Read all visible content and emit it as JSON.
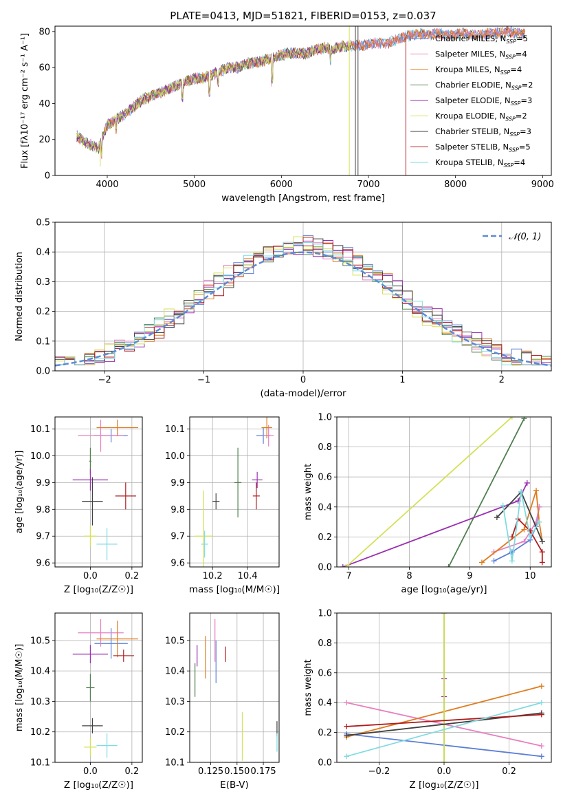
{
  "colors": {
    "Chabrier MILES": "#5b7fd6",
    "Salpeter MILES": "#e87fbf",
    "Kroupa MILES": "#e07b1e",
    "Chabrier ELODIE": "#4f7f4f",
    "Salpeter ELODIE": "#9a2fb0",
    "Kroupa ELODIE": "#d4e157",
    "Chabrier STELIB": "#404040",
    "Salpeter STELIB": "#b01c1c",
    "Kroupa STELIB": "#7fdbe0"
  },
  "chart_data": [
    {
      "type": "line",
      "id": "spectrum",
      "title": "PLATE=0413, MJD=51821, FIBERID=0153, z=0.037",
      "xlabel": "wavelength [Angstrom, rest frame]",
      "ylabel": "Flux [fλ10⁻¹⁷ erg cm⁻² s⁻¹ A⁻¹]",
      "xlim": [
        3400,
        9100
      ],
      "ylim": [
        0,
        83
      ],
      "xticks": [
        "4000",
        "5000",
        "6000",
        "7000",
        "8000",
        "9000"
      ],
      "yticks": [
        "0",
        "20",
        "40",
        "60",
        "80"
      ],
      "grid": false,
      "legend_position": "top-right",
      "legend": [
        {
          "model": "Chabrier MILES",
          "label": "Chabrier MILES, N",
          "sub": "SSP",
          "suffix": "=5"
        },
        {
          "model": "Salpeter MILES",
          "label": "Salpeter MILES, N",
          "sub": "SSP",
          "suffix": "=4"
        },
        {
          "model": "Kroupa MILES",
          "label": "Kroupa MILES, N",
          "sub": "SSP",
          "suffix": "=4"
        },
        {
          "model": "Chabrier ELODIE",
          "label": "Chabrier ELODIE, N",
          "sub": "SSP",
          "suffix": "=2"
        },
        {
          "model": "Salpeter ELODIE",
          "label": "Salpeter ELODIE, N",
          "sub": "SSP",
          "suffix": "=3"
        },
        {
          "model": "Kroupa ELODIE",
          "label": "Kroupa ELODIE, N",
          "sub": "SSP",
          "suffix": "=2"
        },
        {
          "model": "Chabrier STELIB",
          "label": "Chabrier STELIB, N",
          "sub": "SSP",
          "suffix": "=3"
        },
        {
          "model": "Salpeter STELIB",
          "label": "Salpeter STELIB, N",
          "sub": "SSP",
          "suffix": "=5"
        },
        {
          "model": "Kroupa STELIB",
          "label": "Kroupa STELIB, N",
          "sub": "SSP",
          "suffix": "=4"
        }
      ],
      "continuum": {
        "x": [
          3650,
          3700,
          3800,
          3900,
          3950,
          4000,
          4100,
          4200,
          4300,
          4400,
          4500,
          4600,
          4700,
          4800,
          4900,
          5000,
          5100,
          5200,
          5300,
          5400,
          5500,
          5600,
          5700,
          5800,
          5900,
          6000,
          6100,
          6200,
          6300,
          6400,
          6500,
          6600,
          6700,
          6800,
          6900,
          7000,
          7100,
          7200,
          7300,
          7400,
          7500,
          7600,
          7700,
          7800,
          7900,
          8000,
          8100,
          8200,
          8300,
          8400,
          8500,
          8600,
          8700,
          8800
        ],
        "y": [
          22,
          20,
          17,
          15,
          22,
          28,
          31,
          34,
          38,
          42,
          44,
          46,
          48,
          50,
          52,
          54,
          54,
          56,
          58,
          60,
          60,
          62,
          63,
          64,
          65,
          67,
          68,
          68,
          68,
          70,
          71,
          70,
          72,
          72,
          72,
          73,
          74,
          73,
          75,
          77,
          78,
          79,
          78,
          79,
          78,
          78,
          79,
          78,
          78,
          79,
          79,
          80,
          79,
          79
        ]
      },
      "absorption_lines": [
        {
          "x": 3935,
          "depth": 8
        },
        {
          "x": 4102,
          "depth": 6
        },
        {
          "x": 4861,
          "depth": 8
        },
        {
          "x": 5175,
          "depth": 9
        },
        {
          "x": 5270,
          "depth": 5
        },
        {
          "x": 5893,
          "depth": 12
        },
        {
          "x": 6563,
          "depth": 6
        }
      ],
      "dropouts": [
        {
          "model": "Kroupa ELODIE",
          "x": 3920,
          "to": 5
        },
        {
          "model": "Kroupa ELODIE",
          "x": 6780,
          "to": 0
        },
        {
          "model": "Chabrier STELIB",
          "x": 6850,
          "to": 0
        },
        {
          "model": "Chabrier STELIB",
          "x": 6880,
          "to": 0
        },
        {
          "model": "Salpeter STELIB",
          "x": 7430,
          "to": 0
        }
      ]
    },
    {
      "type": "histogram",
      "id": "residuals",
      "xlabel": "(data-model)/error",
      "ylabel": "Normed distribution",
      "xlim": [
        -2.5,
        2.5
      ],
      "ylim": [
        0,
        0.5
      ],
      "xticks": [
        "−2",
        "−1",
        "0",
        "1",
        "2"
      ],
      "yticks": [
        "0.0",
        "0.1",
        "0.2",
        "0.3",
        "0.4",
        "0.5"
      ],
      "grid": true,
      "legend_position": "top-right",
      "legend": [
        "𝒩(0, 1)"
      ],
      "bin_width": 0.1,
      "reference_curve": "gaussian",
      "offsets": [
        0.012,
        -0.018,
        0.02,
        -0.01,
        0.028,
        -0.026,
        0.006,
        0.016,
        -0.022
      ]
    },
    {
      "type": "errorbar",
      "id": "age-vs-Z",
      "xlabel": "Z [log₁₀(Z/Z☉)]",
      "ylabel": "age  [log₁₀(age/yr)]",
      "xlim": [
        -0.17,
        0.25
      ],
      "ylim": [
        9.585,
        10.145
      ],
      "xticks": [
        "0.0",
        "0.2"
      ],
      "yticks": [
        "9.6",
        "9.7",
        "9.8",
        "9.9",
        "10.0",
        "10.1"
      ],
      "grid": true,
      "points": [
        {
          "model": "Chabrier MILES",
          "x": 0.1,
          "y": 10.075,
          "xerr": 0.08,
          "yerr": 0.025
        },
        {
          "model": "Salpeter MILES",
          "x": 0.05,
          "y": 10.075,
          "xerr": 0.11,
          "yerr": 0.06
        },
        {
          "model": "Kroupa MILES",
          "x": 0.13,
          "y": 10.105,
          "xerr": 0.1,
          "yerr": 0.03
        },
        {
          "model": "Chabrier ELODIE",
          "x": 0.0,
          "y": 9.98,
          "xerr": 0.005,
          "yerr": 0.05
        },
        {
          "model": "Salpeter ELODIE",
          "x": 0.0,
          "y": 9.91,
          "xerr": 0.085,
          "yerr": 0.04
        },
        {
          "model": "Kroupa ELODIE",
          "x": 0.0,
          "y": 9.7,
          "xerr": 0.03,
          "yerr": 0.04
        },
        {
          "model": "Chabrier STELIB",
          "x": 0.01,
          "y": 9.83,
          "xerr": 0.05,
          "yerr": 0.09
        },
        {
          "model": "Salpeter STELIB",
          "x": 0.17,
          "y": 9.85,
          "xerr": 0.05,
          "yerr": 0.05
        },
        {
          "model": "Kroupa STELIB",
          "x": 0.08,
          "y": 9.67,
          "xerr": 0.05,
          "yerr": 0.06
        }
      ]
    },
    {
      "type": "errorbar",
      "id": "age-vs-mass",
      "xlabel": "mass [log₁₀(M/M☉)]",
      "ylabel": "",
      "xlim": [
        10.07,
        10.58
      ],
      "ylim": [
        9.585,
        10.145
      ],
      "xticks": [
        "10.2",
        "10.4"
      ],
      "yticks": [
        "9.6",
        "9.7",
        "9.8",
        "9.9",
        "10.0",
        "10.1"
      ],
      "grid": true,
      "points": [
        {
          "model": "Chabrier MILES",
          "x": 10.49,
          "y": 10.075,
          "xerr": 0.04,
          "yerr": 0.03
        },
        {
          "model": "Salpeter MILES",
          "x": 10.52,
          "y": 10.075,
          "xerr": 0.03,
          "yerr": 0.04
        },
        {
          "model": "Kroupa MILES",
          "x": 10.51,
          "y": 10.105,
          "xerr": 0.03,
          "yerr": 0.04
        },
        {
          "model": "Chabrier ELODIE",
          "x": 10.345,
          "y": 9.9,
          "xerr": 0.02,
          "yerr": 0.13
        },
        {
          "model": "Salpeter ELODIE",
          "x": 10.455,
          "y": 9.91,
          "xerr": 0.03,
          "yerr": 0.03
        },
        {
          "model": "Kroupa ELODIE",
          "x": 10.15,
          "y": 9.7,
          "xerr": 0.05,
          "yerr": 0.17
        },
        {
          "model": "Chabrier STELIB",
          "x": 10.22,
          "y": 9.83,
          "xerr": 0.02,
          "yerr": 0.03
        },
        {
          "model": "Salpeter STELIB",
          "x": 10.45,
          "y": 9.85,
          "xerr": 0.02,
          "yerr": 0.05
        },
        {
          "model": "Kroupa STELIB",
          "x": 10.155,
          "y": 9.67,
          "xerr": 0.02,
          "yerr": 0.05
        }
      ]
    },
    {
      "type": "line",
      "id": "massweight-vs-age",
      "xlabel": "age  [log₁₀(age/yr)]",
      "ylabel": "mass weight",
      "xlim": [
        6.8,
        10.35
      ],
      "ylim": [
        0,
        1.0
      ],
      "xticks": [
        "7",
        "8",
        "9",
        "10"
      ],
      "yticks": [
        "0.0",
        "0.2",
        "0.4",
        "0.6",
        "0.8",
        "1.0"
      ],
      "grid": true,
      "series": [
        {
          "model": "Chabrier MILES",
          "x": [
            9.4,
            9.7,
            10.0,
            10.1,
            10.15
          ],
          "y": [
            0.04,
            0.1,
            0.18,
            0.27,
            0.4
          ]
        },
        {
          "model": "Salpeter MILES",
          "x": [
            9.4,
            9.9,
            10.1,
            10.15
          ],
          "y": [
            0.1,
            0.17,
            0.3,
            0.4
          ]
        },
        {
          "model": "Kroupa MILES",
          "x": [
            9.2,
            9.9,
            10.1,
            10.15,
            10.2
          ],
          "y": [
            0.03,
            0.25,
            0.51,
            0.3,
            0.17
          ]
        },
        {
          "model": "Chabrier ELODIE",
          "x": [
            8.65,
            9.9
          ],
          "y": [
            0.0,
            0.99
          ]
        },
        {
          "model": "Salpeter ELODIE",
          "x": [
            6.9,
            9.8,
            9.95
          ],
          "y": [
            0.0,
            0.44,
            0.56
          ]
        },
        {
          "model": "Kroupa ELODIE",
          "x": [
            6.95,
            9.7
          ],
          "y": [
            0.0,
            1.0
          ]
        },
        {
          "model": "Chabrier STELIB",
          "x": [
            9.45,
            9.85,
            10.2
          ],
          "y": [
            0.33,
            0.5,
            0.17
          ]
        },
        {
          "model": "Salpeter STELIB",
          "x": [
            9.7,
            9.8,
            10.0,
            10.2,
            10.2
          ],
          "y": [
            0.2,
            0.32,
            0.24,
            0.1,
            0.03
          ]
        },
        {
          "model": "Kroupa STELIB",
          "x": [
            9.55,
            9.7,
            9.85,
            10.0,
            10.15
          ],
          "y": [
            0.41,
            0.04,
            0.5,
            0.2,
            0.3
          ]
        }
      ]
    },
    {
      "type": "errorbar",
      "id": "mass-vs-Z",
      "xlabel": "Z [log₁₀(Z/Z☉)]",
      "ylabel": "mass [log₁₀(M/M☉)]",
      "xlim": [
        -0.17,
        0.25
      ],
      "ylim": [
        10.1,
        10.59
      ],
      "xticks": [
        "0.0",
        "0.2"
      ],
      "yticks": [
        "10.1",
        "10.2",
        "10.3",
        "10.4",
        "10.5"
      ],
      "grid": true,
      "points": [
        {
          "model": "Chabrier MILES",
          "x": 0.1,
          "y": 10.49,
          "xerr": 0.08,
          "yerr": 0.05
        },
        {
          "model": "Salpeter MILES",
          "x": 0.05,
          "y": 10.525,
          "xerr": 0.11,
          "yerr": 0.045
        },
        {
          "model": "Kroupa MILES",
          "x": 0.13,
          "y": 10.505,
          "xerr": 0.1,
          "yerr": 0.06
        },
        {
          "model": "Chabrier ELODIE",
          "x": 0.0,
          "y": 10.345,
          "xerr": 0.02,
          "yerr": 0.045
        },
        {
          "model": "Salpeter ELODIE",
          "x": 0.0,
          "y": 10.455,
          "xerr": 0.085,
          "yerr": 0.03
        },
        {
          "model": "Kroupa ELODIE",
          "x": 0.0,
          "y": 10.15,
          "xerr": 0.03,
          "yerr": 0.03
        },
        {
          "model": "Chabrier STELIB",
          "x": 0.01,
          "y": 10.22,
          "xerr": 0.05,
          "yerr": 0.025
        },
        {
          "model": "Salpeter STELIB",
          "x": 0.16,
          "y": 10.45,
          "xerr": 0.05,
          "yerr": 0.02
        },
        {
          "model": "Kroupa STELIB",
          "x": 0.08,
          "y": 10.155,
          "xerr": 0.05,
          "yerr": 0.04
        }
      ]
    },
    {
      "type": "errorbar",
      "id": "mass-vs-ebv",
      "xlabel": "E(B-V)",
      "ylabel": "",
      "xlim": [
        0.105,
        0.19
      ],
      "ylim": [
        10.1,
        10.59
      ],
      "xticks": [
        "0.125",
        "0.150",
        "0.175"
      ],
      "yticks": [
        "10.1",
        "10.2",
        "10.3",
        "10.4",
        "10.5"
      ],
      "grid": true,
      "points": [
        {
          "model": "Chabrier MILES",
          "x": 0.13,
          "y": 10.43,
          "xerr": 0,
          "yerr": 0.07
        },
        {
          "model": "Salpeter MILES",
          "x": 0.129,
          "y": 10.5,
          "xerr": 0,
          "yerr": 0.07
        },
        {
          "model": "Kroupa MILES",
          "x": 0.12,
          "y": 10.445,
          "xerr": 0,
          "yerr": 0.07
        },
        {
          "model": "Chabrier ELODIE",
          "x": 0.11,
          "y": 10.37,
          "xerr": 0,
          "yerr": 0.055
        },
        {
          "model": "Salpeter ELODIE",
          "x": 0.112,
          "y": 10.45,
          "xerr": 0,
          "yerr": 0.035
        },
        {
          "model": "Kroupa ELODIE",
          "x": 0.155,
          "y": 10.185,
          "xerr": 0,
          "yerr": 0.08
        },
        {
          "model": "Chabrier STELIB",
          "x": 0.188,
          "y": 10.21,
          "xerr": 0,
          "yerr": 0.025
        },
        {
          "model": "Salpeter STELIB",
          "x": 0.139,
          "y": 10.455,
          "xerr": 0,
          "yerr": 0.025
        },
        {
          "model": "Kroupa STELIB",
          "x": 0.188,
          "y": 10.165,
          "xerr": 0,
          "yerr": 0.03
        }
      ]
    },
    {
      "type": "line",
      "id": "massweight-vs-Z",
      "xlabel": "Z [log₁₀(Z/Z☉)]",
      "ylabel": "mass weight",
      "xlim": [
        -0.33,
        0.33
      ],
      "ylim": [
        0,
        1.0
      ],
      "xticks": [
        "−0.2",
        "0.0",
        "0.2"
      ],
      "yticks": [
        "0.0",
        "0.2",
        "0.4",
        "0.6",
        "0.8",
        "1.0"
      ],
      "grid": true,
      "series": [
        {
          "model": "Chabrier MILES",
          "x": [
            -0.3,
            0.3
          ],
          "y": [
            0.19,
            0.04
          ]
        },
        {
          "model": "Salpeter MILES",
          "x": [
            -0.3,
            0.3
          ],
          "y": [
            0.4,
            0.11
          ]
        },
        {
          "model": "Kroupa MILES",
          "x": [
            -0.3,
            0.3
          ],
          "y": [
            0.17,
            0.51
          ]
        },
        {
          "model": "Chabrier ELODIE",
          "x": [
            0.0,
            0.0
          ],
          "y": [
            0.0,
            1.0
          ]
        },
        {
          "model": "Salpeter ELODIE",
          "x": [
            0.0,
            0.0
          ],
          "y": [
            0.44,
            0.56
          ]
        },
        {
          "model": "Kroupa ELODIE",
          "x": [
            0.0,
            0.0
          ],
          "y": [
            0.0,
            1.0
          ]
        },
        {
          "model": "Chabrier STELIB",
          "x": [
            -0.3,
            0.3
          ],
          "y": [
            0.18,
            0.33
          ]
        },
        {
          "model": "Salpeter STELIB",
          "x": [
            -0.3,
            0.3
          ],
          "y": [
            0.24,
            0.32
          ]
        },
        {
          "model": "Kroupa STELIB",
          "x": [
            -0.3,
            0.3
          ],
          "y": [
            0.04,
            0.4
          ]
        }
      ]
    }
  ]
}
